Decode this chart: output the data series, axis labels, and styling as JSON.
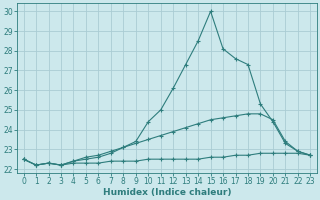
{
  "xlabel": "Humidex (Indice chaleur)",
  "bg_color": "#cce8ec",
  "grid_color": "#aaccd4",
  "line_color": "#2e7d7d",
  "xlim": [
    -0.5,
    23.5
  ],
  "ylim": [
    21.8,
    30.4
  ],
  "yticks": [
    22,
    23,
    24,
    25,
    26,
    27,
    28,
    29,
    30
  ],
  "xticks": [
    0,
    1,
    2,
    3,
    4,
    5,
    6,
    7,
    8,
    9,
    10,
    11,
    12,
    13,
    14,
    15,
    16,
    17,
    18,
    19,
    20,
    21,
    22,
    23
  ],
  "series": [
    {
      "x": [
        0,
        1,
        2,
        3,
        4,
        5,
        6,
        7,
        8,
        9,
        10,
        11,
        12,
        13,
        14,
        15,
        16,
        17,
        18,
        19,
        20,
        21,
        22,
        23
      ],
      "y": [
        22.5,
        22.2,
        22.3,
        22.2,
        22.4,
        22.5,
        22.6,
        22.8,
        23.1,
        23.4,
        24.4,
        25.0,
        26.1,
        27.3,
        28.5,
        30.0,
        28.1,
        27.6,
        27.3,
        25.3,
        24.4,
        23.3,
        22.9,
        22.7
      ]
    },
    {
      "x": [
        0,
        1,
        2,
        3,
        4,
        5,
        6,
        7,
        8,
        9,
        10,
        11,
        12,
        13,
        14,
        15,
        16,
        17,
        18,
        19,
        20,
        21,
        22,
        23
      ],
      "y": [
        22.5,
        22.2,
        22.3,
        22.2,
        22.4,
        22.6,
        22.7,
        22.9,
        23.1,
        23.3,
        23.5,
        23.7,
        23.9,
        24.1,
        24.3,
        24.5,
        24.6,
        24.7,
        24.8,
        24.8,
        24.5,
        23.4,
        22.9,
        22.7
      ]
    },
    {
      "x": [
        0,
        1,
        2,
        3,
        4,
        5,
        6,
        7,
        8,
        9,
        10,
        11,
        12,
        13,
        14,
        15,
        16,
        17,
        18,
        19,
        20,
        21,
        22,
        23
      ],
      "y": [
        22.5,
        22.2,
        22.3,
        22.2,
        22.3,
        22.3,
        22.3,
        22.4,
        22.4,
        22.4,
        22.5,
        22.5,
        22.5,
        22.5,
        22.5,
        22.6,
        22.6,
        22.7,
        22.7,
        22.8,
        22.8,
        22.8,
        22.8,
        22.7
      ]
    }
  ]
}
